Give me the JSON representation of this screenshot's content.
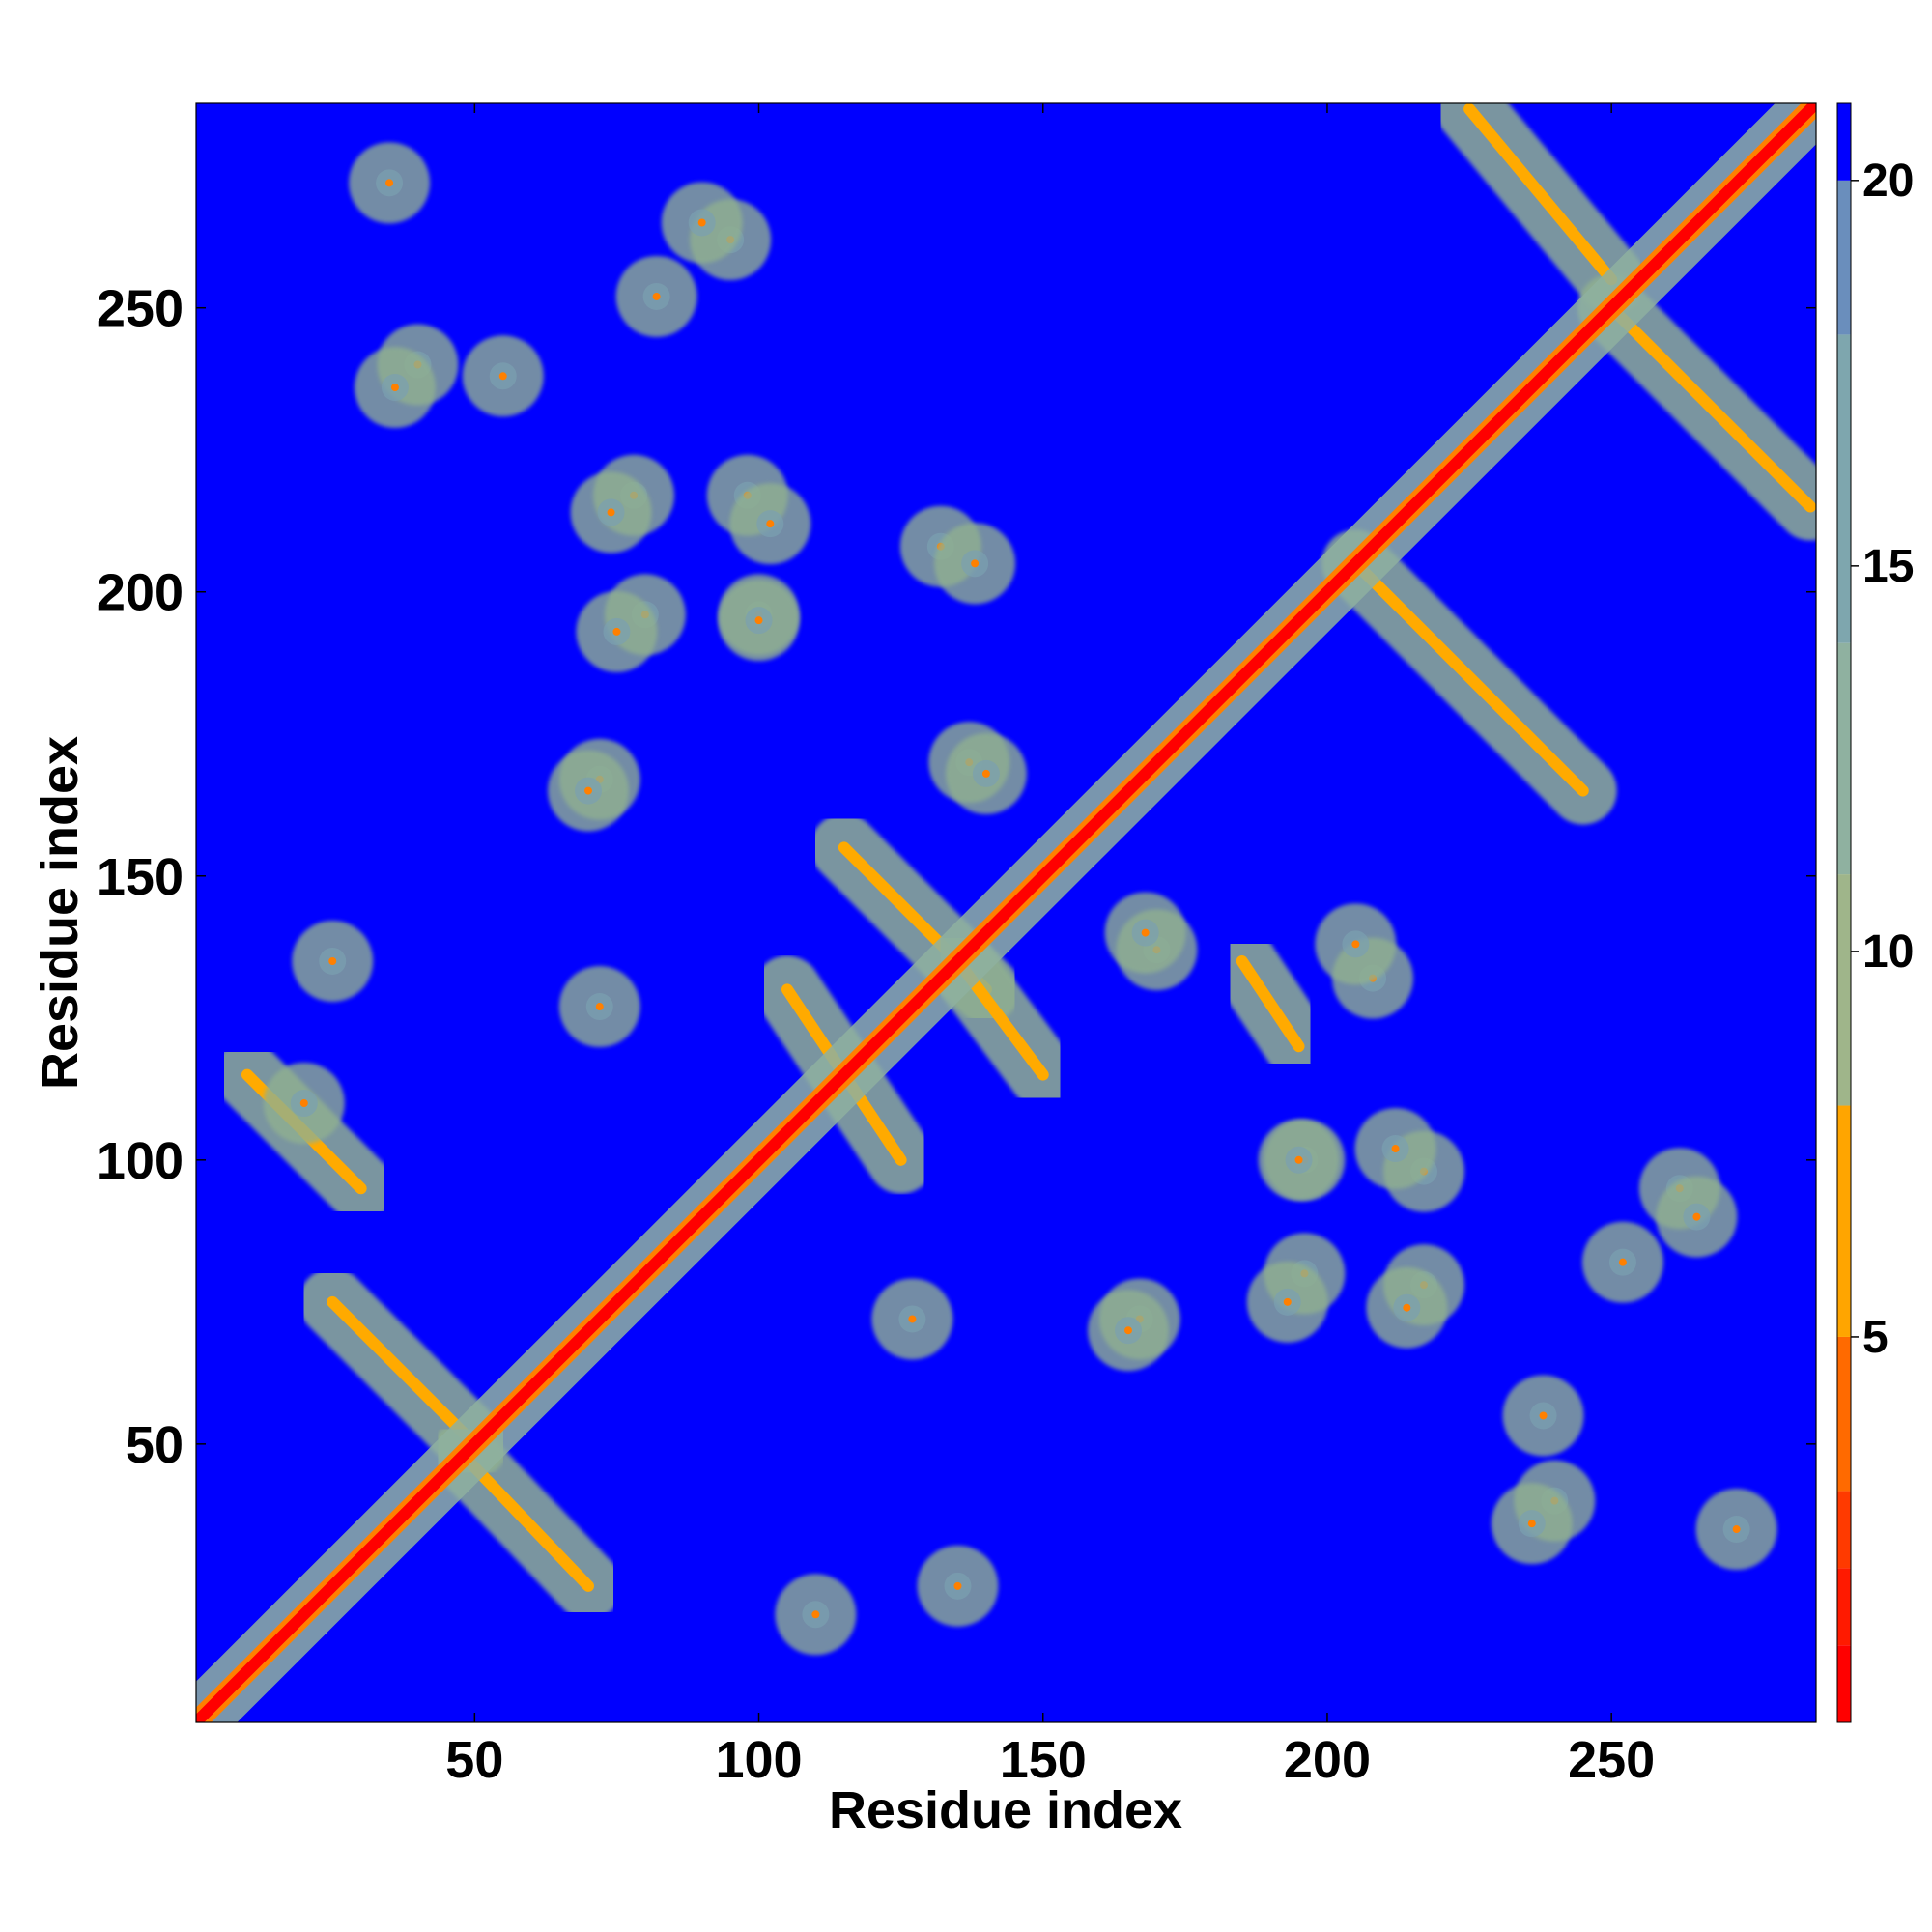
{
  "chart_data": {
    "type": "heatmap",
    "xlabel": "Residue index",
    "ylabel": "Residue index",
    "xlim": [
      1,
      286
    ],
    "ylim": [
      1,
      286
    ],
    "x_ticks": [
      50,
      100,
      150,
      200,
      250
    ],
    "y_ticks": [
      50,
      100,
      150,
      200,
      250
    ],
    "colorbar": {
      "ticks": [
        5,
        10,
        15,
        20
      ],
      "range": [
        0,
        21
      ],
      "colors": [
        "#ff0000",
        "#ff2200",
        "#ff5500",
        "#ff8000",
        "#ffaa00",
        "#90b090",
        "#8fb1a0",
        "#7aa0b0",
        "#5b80c0",
        "#0000ff"
      ]
    },
    "grid": false,
    "background_value": 21,
    "features": {
      "diagonal": "residue i vs i (distance ~0)",
      "secondary_diagonals": [
        {
          "from": [
            10,
            115
          ],
          "to": [
            30,
            95
          ],
          "note": "antiparallel contact band"
        },
        {
          "from": [
            25,
            75
          ],
          "to": [
            50,
            50
          ],
          "note": "antiparallel contact band"
        },
        {
          "from": [
            48,
            48
          ],
          "to": [
            70,
            25
          ]
        },
        {
          "from": [
            105,
            130
          ],
          "to": [
            125,
            100
          ]
        },
        {
          "from": [
            115,
            155
          ],
          "to": [
            140,
            130
          ]
        },
        {
          "from": [
            135,
            135
          ],
          "to": [
            150,
            115
          ]
        },
        {
          "from": [
            185,
            135
          ],
          "to": [
            195,
            120
          ]
        },
        {
          "from": [
            205,
            205
          ],
          "to": [
            245,
            165
          ]
        },
        {
          "from": [
            250,
            250
          ],
          "to": [
            285,
            215
          ]
        },
        {
          "from": [
            225,
            285
          ],
          "to": [
            250,
            255
          ]
        }
      ],
      "contact_clusters": [
        {
          "x": 82,
          "y": 252
        },
        {
          "x": 95,
          "y": 262
        },
        {
          "x": 40,
          "y": 240
        },
        {
          "x": 55,
          "y": 238
        },
        {
          "x": 78,
          "y": 217
        },
        {
          "x": 98,
          "y": 217
        },
        {
          "x": 80,
          "y": 196
        },
        {
          "x": 100,
          "y": 196
        },
        {
          "x": 132,
          "y": 208
        },
        {
          "x": 137,
          "y": 170
        },
        {
          "x": 72,
          "y": 167
        },
        {
          "x": 205,
          "y": 138
        },
        {
          "x": 168,
          "y": 140
        },
        {
          "x": 195,
          "y": 100
        },
        {
          "x": 212,
          "y": 102
        },
        {
          "x": 193,
          "y": 75
        },
        {
          "x": 214,
          "y": 74
        },
        {
          "x": 165,
          "y": 70
        },
        {
          "x": 127,
          "y": 72
        },
        {
          "x": 236,
          "y": 36
        },
        {
          "x": 272,
          "y": 35
        },
        {
          "x": 265,
          "y": 90
        },
        {
          "x": 110,
          "y": 20
        },
        {
          "x": 135,
          "y": 25
        }
      ]
    }
  }
}
